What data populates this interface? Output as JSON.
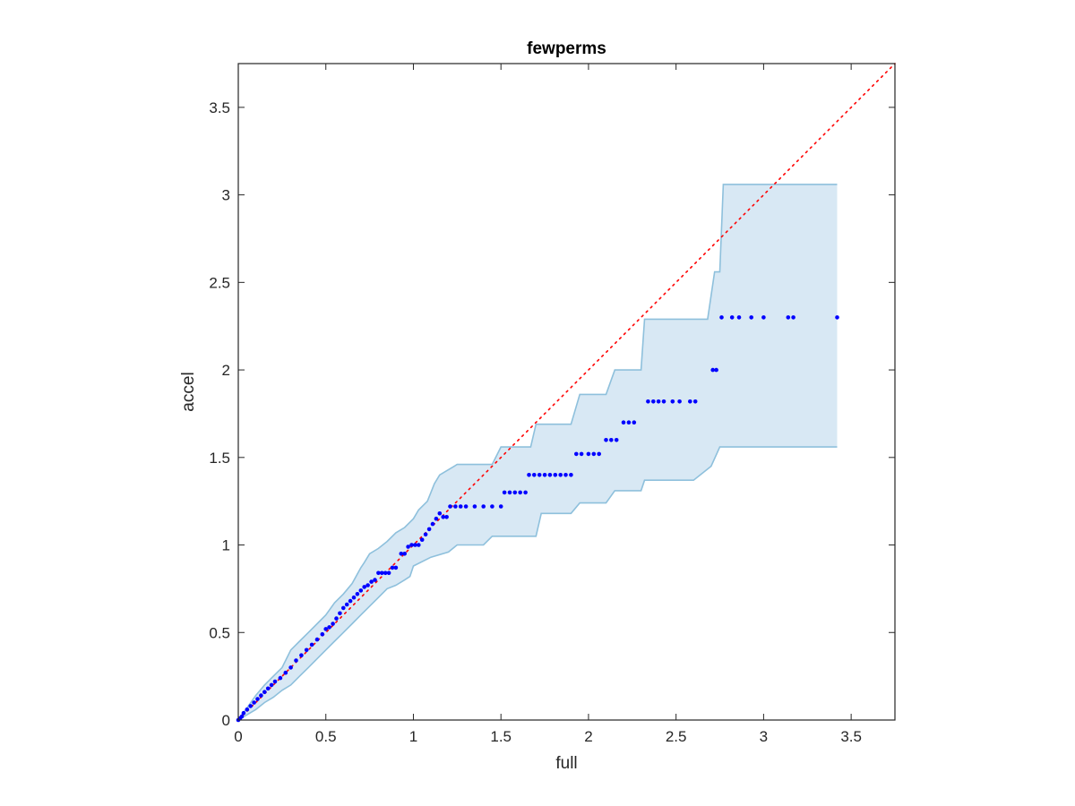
{
  "chart_data": {
    "type": "scatter",
    "title": "fewperms",
    "xlabel": "full",
    "ylabel": "accel",
    "xlim": [
      0,
      3.75
    ],
    "ylim": [
      0,
      3.75
    ],
    "xticks": [
      "0",
      "0.5",
      "1",
      "1.5",
      "2",
      "2.5",
      "3",
      "3.5"
    ],
    "yticks": [
      "0",
      "0.5",
      "1",
      "1.5",
      "2",
      "2.5",
      "3",
      "3.5"
    ],
    "grid": false,
    "legend": "none",
    "colors": {
      "points": "#0000ff",
      "reference": "#ff0000",
      "band_fill": "#d8e8f4",
      "band_edge": "#8ec0dc",
      "axis": "#262626"
    },
    "reference_line": {
      "style": "dotted",
      "from": [
        0,
        0
      ],
      "to": [
        3.75,
        3.75
      ]
    },
    "band": {
      "upper": [
        [
          0,
          0
        ],
        [
          0.05,
          0.07
        ],
        [
          0.1,
          0.14
        ],
        [
          0.15,
          0.2
        ],
        [
          0.2,
          0.25
        ],
        [
          0.25,
          0.3
        ],
        [
          0.3,
          0.4
        ],
        [
          0.35,
          0.45
        ],
        [
          0.4,
          0.5
        ],
        [
          0.45,
          0.55
        ],
        [
          0.5,
          0.6
        ],
        [
          0.55,
          0.67
        ],
        [
          0.6,
          0.72
        ],
        [
          0.65,
          0.78
        ],
        [
          0.7,
          0.87
        ],
        [
          0.72,
          0.9
        ],
        [
          0.75,
          0.95
        ],
        [
          0.8,
          0.98
        ],
        [
          0.85,
          1.02
        ],
        [
          0.9,
          1.07
        ],
        [
          0.95,
          1.1
        ],
        [
          1.0,
          1.15
        ],
        [
          1.03,
          1.2
        ],
        [
          1.08,
          1.25
        ],
        [
          1.1,
          1.3
        ],
        [
          1.12,
          1.35
        ],
        [
          1.15,
          1.4
        ],
        [
          1.25,
          1.46
        ],
        [
          1.45,
          1.46
        ],
        [
          1.5,
          1.56
        ],
        [
          1.67,
          1.56
        ],
        [
          1.7,
          1.69
        ],
        [
          1.9,
          1.69
        ],
        [
          1.95,
          1.86
        ],
        [
          2.1,
          1.86
        ],
        [
          2.15,
          2.0
        ],
        [
          2.3,
          2.0
        ],
        [
          2.32,
          2.29
        ],
        [
          2.68,
          2.29
        ],
        [
          2.72,
          2.56
        ],
        [
          2.75,
          2.56
        ],
        [
          2.77,
          3.06
        ],
        [
          3.42,
          3.06
        ]
      ],
      "lower": [
        [
          3.42,
          1.56
        ],
        [
          2.75,
          1.56
        ],
        [
          2.7,
          1.45
        ],
        [
          2.6,
          1.37
        ],
        [
          2.32,
          1.37
        ],
        [
          2.3,
          1.31
        ],
        [
          2.15,
          1.31
        ],
        [
          2.1,
          1.24
        ],
        [
          1.95,
          1.24
        ],
        [
          1.9,
          1.18
        ],
        [
          1.73,
          1.18
        ],
        [
          1.7,
          1.05
        ],
        [
          1.45,
          1.05
        ],
        [
          1.4,
          1.0
        ],
        [
          1.25,
          1.0
        ],
        [
          1.2,
          0.96
        ],
        [
          1.1,
          0.93
        ],
        [
          1.0,
          0.88
        ],
        [
          0.98,
          0.82
        ],
        [
          0.95,
          0.8
        ],
        [
          0.9,
          0.77
        ],
        [
          0.85,
          0.75
        ],
        [
          0.8,
          0.7
        ],
        [
          0.75,
          0.65
        ],
        [
          0.7,
          0.6
        ],
        [
          0.65,
          0.55
        ],
        [
          0.6,
          0.5
        ],
        [
          0.55,
          0.45
        ],
        [
          0.5,
          0.4
        ],
        [
          0.45,
          0.35
        ],
        [
          0.4,
          0.3
        ],
        [
          0.35,
          0.25
        ],
        [
          0.3,
          0.2
        ],
        [
          0.25,
          0.17
        ],
        [
          0.2,
          0.13
        ],
        [
          0.15,
          0.1
        ],
        [
          0.1,
          0.06
        ],
        [
          0.05,
          0.03
        ],
        [
          0,
          0
        ]
      ]
    },
    "series": [
      {
        "x": [
          0.0,
          0.01,
          0.02,
          0.03,
          0.05,
          0.07,
          0.09,
          0.11,
          0.13,
          0.15,
          0.17,
          0.19,
          0.21,
          0.24,
          0.27,
          0.3,
          0.33,
          0.36,
          0.39,
          0.42,
          0.45,
          0.48,
          0.5,
          0.52,
          0.54,
          0.56,
          0.58,
          0.6,
          0.62,
          0.64,
          0.66,
          0.68,
          0.7,
          0.72,
          0.74,
          0.76,
          0.78,
          0.8,
          0.82,
          0.84,
          0.86,
          0.88,
          0.9,
          0.93,
          0.95,
          0.97,
          0.99,
          1.01,
          1.03,
          1.05,
          1.07,
          1.09,
          1.11,
          1.13,
          1.15,
          1.17,
          1.19,
          1.21,
          1.24,
          1.27,
          1.3,
          1.35,
          1.4,
          1.45,
          1.5,
          1.52,
          1.55,
          1.58,
          1.61,
          1.64,
          1.66,
          1.69,
          1.72,
          1.75,
          1.78,
          1.81,
          1.84,
          1.87,
          1.9,
          1.93,
          1.96,
          2.0,
          2.03,
          2.06,
          2.1,
          2.13,
          2.16,
          2.2,
          2.23,
          2.26,
          2.34,
          2.37,
          2.4,
          2.43,
          2.48,
          2.52,
          2.58,
          2.61,
          2.71,
          2.73,
          2.76,
          2.82,
          2.86,
          2.93,
          3.0,
          3.14,
          3.17,
          3.42
        ],
        "y": [
          0.0,
          0.01,
          0.02,
          0.04,
          0.06,
          0.08,
          0.1,
          0.12,
          0.14,
          0.16,
          0.18,
          0.2,
          0.22,
          0.24,
          0.27,
          0.3,
          0.34,
          0.37,
          0.4,
          0.43,
          0.46,
          0.49,
          0.52,
          0.53,
          0.55,
          0.58,
          0.61,
          0.64,
          0.66,
          0.68,
          0.7,
          0.72,
          0.74,
          0.76,
          0.77,
          0.79,
          0.8,
          0.84,
          0.84,
          0.84,
          0.84,
          0.87,
          0.87,
          0.95,
          0.95,
          0.99,
          1.0,
          1.0,
          1.0,
          1.03,
          1.06,
          1.09,
          1.12,
          1.15,
          1.18,
          1.16,
          1.16,
          1.22,
          1.22,
          1.22,
          1.22,
          1.22,
          1.22,
          1.22,
          1.22,
          1.3,
          1.3,
          1.3,
          1.3,
          1.3,
          1.4,
          1.4,
          1.4,
          1.4,
          1.4,
          1.4,
          1.4,
          1.4,
          1.4,
          1.52,
          1.52,
          1.52,
          1.52,
          1.52,
          1.6,
          1.6,
          1.6,
          1.7,
          1.7,
          1.7,
          1.82,
          1.82,
          1.82,
          1.82,
          1.82,
          1.82,
          1.82,
          1.82,
          2.0,
          2.0,
          2.3,
          2.3,
          2.3,
          2.3,
          2.3,
          2.3,
          2.3,
          2.3
        ]
      }
    ]
  }
}
